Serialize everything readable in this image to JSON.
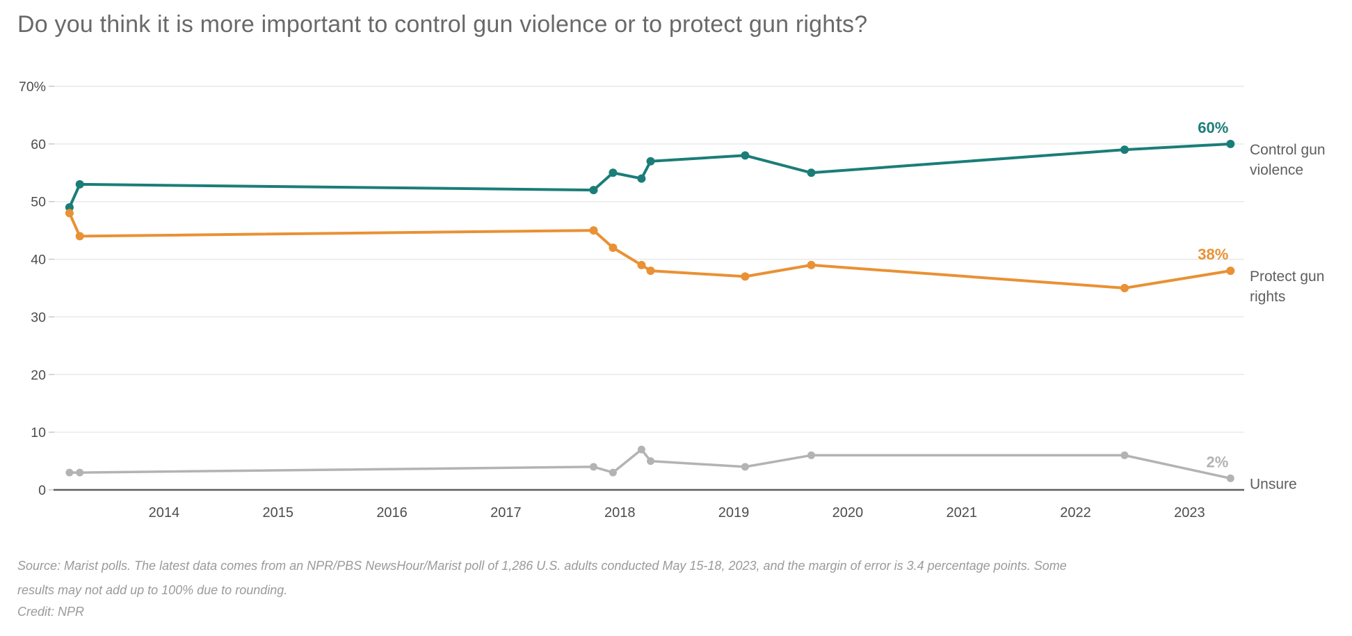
{
  "title": "Do you think it is more important to control gun violence or to protect gun rights?",
  "footer": {
    "source": "Source: Marist polls. The latest data comes from an NPR/PBS NewsHour/Marist poll of 1,286 U.S. adults conducted May 15-18, 2023, and the margin of error is 3.4 percentage points. Some results may not add up to 100% due to rounding.",
    "credit": "Credit: NPR"
  },
  "chart_data": {
    "type": "line",
    "title": "Do you think it is more important to control gun violence or to protect gun rights?",
    "x": [
      2013.17,
      2013.26,
      2017.77,
      2017.94,
      2018.19,
      2018.27,
      2019.1,
      2019.68,
      2022.43,
      2023.36
    ],
    "xlabel": "",
    "ylabel": "",
    "ylim": [
      0,
      70
    ],
    "xlim": [
      2013.03,
      2023.48
    ],
    "grid": "horizontal",
    "legend_position": "right-end-labels",
    "series": [
      {
        "name": "Control gun violence",
        "color": "#1b7d78",
        "end_label": "60%",
        "label_lines": [
          "Control gun",
          "violence"
        ],
        "values": [
          49,
          53,
          52,
          55,
          54,
          57,
          58,
          55,
          59,
          60
        ]
      },
      {
        "name": "Protect gun rights",
        "color": "#e99134",
        "end_label": "38%",
        "label_lines": [
          "Protect gun",
          "rights"
        ],
        "values": [
          48,
          44,
          45,
          42,
          39,
          38,
          37,
          39,
          35,
          38
        ]
      },
      {
        "name": "Unsure",
        "color": "#b3b3b3",
        "end_label": "2%",
        "label_lines": [
          "Unsure"
        ],
        "values": [
          3,
          3,
          4,
          3,
          7,
          5,
          4,
          6,
          6,
          2
        ]
      }
    ],
    "x_ticks": [
      {
        "year": 2014,
        "label": "2014"
      },
      {
        "year": 2015,
        "label": "2015"
      },
      {
        "year": 2016,
        "label": "2016"
      },
      {
        "year": 2017,
        "label": "2017"
      },
      {
        "year": 2018,
        "label": "2018"
      },
      {
        "year": 2019,
        "label": "2019"
      },
      {
        "year": 2020,
        "label": "2020"
      },
      {
        "year": 2021,
        "label": "2021"
      },
      {
        "year": 2022,
        "label": "2022"
      },
      {
        "year": 2023,
        "label": "2023"
      }
    ],
    "y_ticks": [
      {
        "value": 0,
        "label": "0"
      },
      {
        "value": 10,
        "label": "10"
      },
      {
        "value": 20,
        "label": "20"
      },
      {
        "value": 30,
        "label": "30"
      },
      {
        "value": 40,
        "label": "40"
      },
      {
        "value": 50,
        "label": "50"
      },
      {
        "value": 60,
        "label": "60"
      },
      {
        "value": 70,
        "label": "70%"
      }
    ]
  },
  "colors": {
    "control_gun_violence": "#1b7d78",
    "protect_gun_rights": "#e99134",
    "unsure": "#b3b3b3",
    "axis_line": "#5f5f5f",
    "gridline": "#e9e9e9",
    "tick_mark": "#c9c9c9",
    "tick_label": "#4c4c4c",
    "series_label": "#5e5e5e",
    "title": "#696969",
    "source_text": "#9a9a9a",
    "background": "#ffffff"
  }
}
